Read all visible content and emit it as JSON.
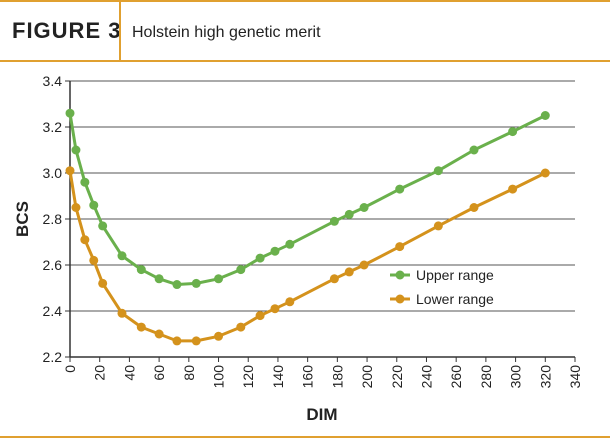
{
  "header": {
    "label": "FIGURE 3",
    "title": "Holstein high genetic merit"
  },
  "chart_data": {
    "type": "line",
    "x_label": "DIM",
    "y_label": "BCS",
    "x": [
      0,
      4,
      10,
      16,
      22,
      35,
      48,
      60,
      72,
      85,
      100,
      115,
      128,
      138,
      148,
      178,
      188,
      198,
      222,
      248,
      272,
      298,
      320
    ],
    "series": [
      {
        "name": "Upper range",
        "color": "#6ab04c",
        "values": [
          3.26,
          3.1,
          2.96,
          2.86,
          2.77,
          2.64,
          2.58,
          2.54,
          2.515,
          2.52,
          2.54,
          2.58,
          2.63,
          2.66,
          2.69,
          2.79,
          2.82,
          2.85,
          2.93,
          3.01,
          3.1,
          3.18,
          3.25
        ]
      },
      {
        "name": "Lower range",
        "color": "#d4921c",
        "values": [
          3.01,
          2.85,
          2.71,
          2.62,
          2.52,
          2.39,
          2.33,
          2.3,
          2.27,
          2.27,
          2.29,
          2.33,
          2.38,
          2.41,
          2.44,
          2.54,
          2.57,
          2.6,
          2.68,
          2.77,
          2.85,
          2.93,
          3.0
        ]
      }
    ],
    "xlim": [
      0,
      340
    ],
    "xticks": [
      0,
      20,
      40,
      60,
      80,
      100,
      120,
      140,
      160,
      180,
      200,
      220,
      240,
      260,
      280,
      300,
      320,
      340
    ],
    "ylim": [
      2.2,
      3.4
    ],
    "yticks": [
      2.2,
      2.4,
      2.6,
      2.8,
      {
        "value": 3,
        "label": "3.0"
      },
      3.2,
      3.4
    ],
    "grid": true,
    "legend": "right"
  }
}
